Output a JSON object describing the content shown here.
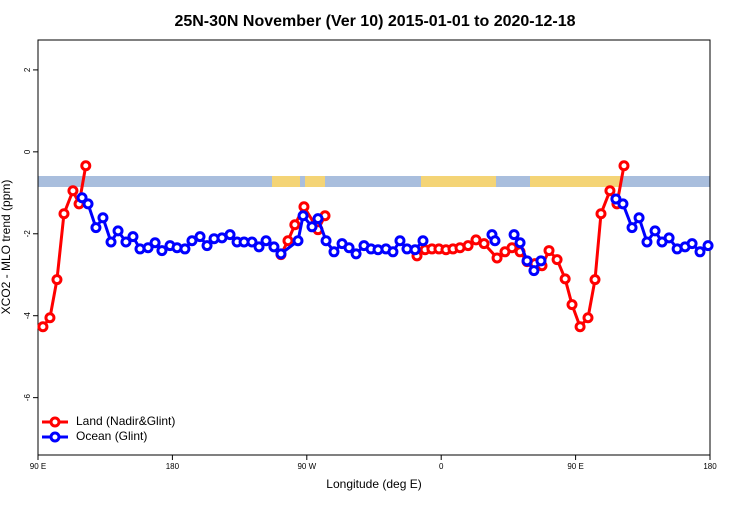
{
  "chart_data": {
    "type": "line",
    "title": "25N-30N November (Ver 10)   2015-01-01 to 2020-12-18",
    "x_label": "Longitude (deg E)",
    "y_label": "XCO2 - MLO trend (ppm)",
    "xlim": [
      90,
      540
    ],
    "ylim": [
      -7.4,
      2.73
    ],
    "xticks": [
      {
        "value": 90,
        "label": "90 E"
      },
      {
        "value": 180,
        "label": "180"
      },
      {
        "value": 270,
        "label": "90 W"
      },
      {
        "value": 360,
        "label": "0"
      },
      {
        "value": 450,
        "label": "90 E"
      },
      {
        "value": 540,
        "label": "180"
      }
    ],
    "yticks": [
      2,
      0,
      -2,
      -4,
      -6
    ],
    "legend": "bottom-left",
    "series": [
      {
        "name": "Land (Nadir&Glint)",
        "color": "#ff0000",
        "x": [
          93.3,
          98,
          102.7,
          107.4,
          113.4,
          117.5,
          122,
          null,
          252.7,
          257.4,
          262,
          268.1,
          277.5,
          282.2,
          null,
          343.8,
          349.2,
          353.8,
          358.5,
          363.2,
          367.9,
          372.6,
          378,
          383.3,
          388.7,
          397.4,
          402.7,
          407.4,
          412.8,
          417.5,
          422.8,
          427.5,
          432.2,
          437.6,
          443,
          447.6,
          453,
          458.3,
          463,
          467,
          473,
          477.7,
          482.4
        ],
        "values": [
          -4.27,
          -4.05,
          -3.12,
          -1.51,
          -0.95,
          -1.27,
          -0.34,
          null,
          -2.51,
          -2.17,
          -1.78,
          -1.34,
          -1.9,
          -1.56,
          null,
          -2.54,
          -2.39,
          -2.37,
          -2.37,
          -2.39,
          -2.37,
          -2.34,
          -2.29,
          -2.15,
          -2.24,
          -2.59,
          -2.44,
          -2.34,
          -2.44,
          -2.68,
          -2.73,
          -2.78,
          -2.41,
          -2.63,
          -3.1,
          -3.73,
          -4.27,
          -4.05,
          -3.12,
          -1.51,
          -0.95,
          -1.27,
          -0.34
        ]
      },
      {
        "name": "Ocean (Glint)",
        "color": "#0000ff",
        "x": [
          119.5,
          123.5,
          128.8,
          133.5,
          138.9,
          143.6,
          148.9,
          153.6,
          158.3,
          163.7,
          168.4,
          173,
          178.4,
          183.1,
          188.4,
          193.1,
          198.5,
          203.2,
          207.9,
          213.2,
          218.6,
          223.3,
          228,
          233.3,
          238,
          242.7,
          248,
          252.7,
          264.1,
          267.5,
          273.5,
          277.5,
          282.9,
          288.2,
          293.6,
          298.3,
          303,
          308.3,
          313,
          317.7,
          323,
          327.7,
          332.4,
          337.1,
          342.5,
          347.8,
          null,
          394,
          396,
          null,
          408.8,
          412.8,
          417.5,
          422.1,
          426.8,
          null,
          477,
          481.7,
          487.8,
          492.5,
          497.8,
          503.2,
          507.9,
          512.6,
          518,
          523.3,
          528,
          533.3,
          538.7
        ],
        "values": [
          -1.12,
          -1.27,
          -1.85,
          -1.61,
          -2.2,
          -1.93,
          -2.2,
          -2.07,
          -2.37,
          -2.34,
          -2.22,
          -2.41,
          -2.29,
          -2.34,
          -2.37,
          -2.17,
          -2.07,
          -2.29,
          -2.12,
          -2.1,
          -2.02,
          -2.2,
          -2.2,
          -2.2,
          -2.32,
          -2.17,
          -2.32,
          -2.49,
          -2.17,
          -1.56,
          -1.83,
          -1.63,
          -2.17,
          -2.44,
          -2.24,
          -2.34,
          -2.49,
          -2.29,
          -2.37,
          -2.39,
          -2.37,
          -2.44,
          -2.17,
          -2.37,
          -2.39,
          -2.17,
          null,
          -2.02,
          -2.17,
          null,
          -2.02,
          -2.22,
          -2.66,
          -2.9,
          -2.66,
          null,
          -1.15,
          -1.27,
          -1.85,
          -1.61,
          -2.2,
          -1.93,
          -2.2,
          -2.1,
          -2.37,
          -2.32,
          -2.24,
          -2.44,
          -2.29
        ]
      }
    ]
  }
}
